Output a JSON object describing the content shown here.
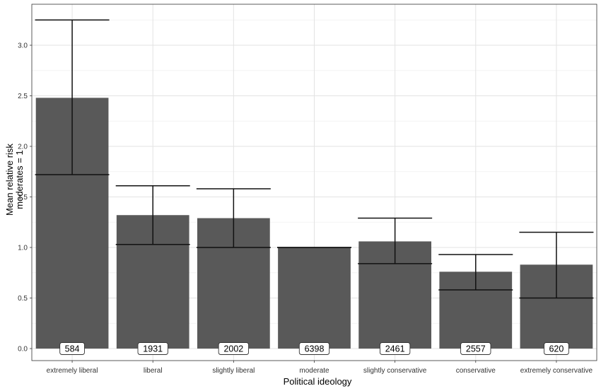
{
  "chart_data": {
    "type": "bar",
    "title": "",
    "xlabel": "Political ideology",
    "ylabel_lines": [
      "Mean relative risk",
      "moderates = 1"
    ],
    "ylim": [
      0,
      3.3
    ],
    "yticks": [
      0.0,
      0.5,
      1.0,
      1.5,
      2.0,
      2.5,
      3.0
    ],
    "ytick_labels": [
      "0.0",
      "0.5",
      "1.0",
      "1.5",
      "2.0",
      "2.5",
      "3.0"
    ],
    "grid": true,
    "categories": [
      "extremely liberal",
      "liberal",
      "slightly liberal",
      "moderate",
      "slightly conservative",
      "conservative",
      "extremely conservative"
    ],
    "values": [
      2.48,
      1.32,
      1.29,
      1.0,
      1.06,
      0.76,
      0.83
    ],
    "error_low": [
      1.72,
      1.03,
      1.0,
      1.0,
      0.84,
      0.58,
      0.5
    ],
    "error_high": [
      3.25,
      1.61,
      1.58,
      1.0,
      1.29,
      0.93,
      1.15
    ],
    "counts": [
      "584",
      "1931",
      "2002",
      "6398",
      "2461",
      "2557",
      "620"
    ],
    "colors": {
      "bar": "#595959",
      "error_bar": "#111111",
      "grid": "#e3e3e3"
    }
  }
}
